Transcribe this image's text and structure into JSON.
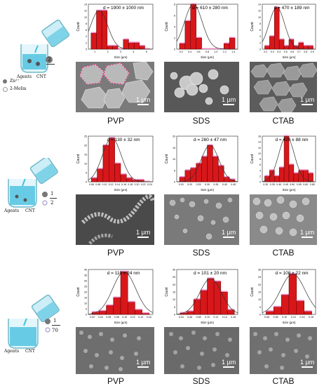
{
  "samples": [
    "PVP",
    "SDS",
    "CTAB"
  ],
  "scale_bar": "1 µm",
  "axis": {
    "y": "Count",
    "x": "Size (µm)"
  },
  "schematics": [
    {
      "labels": [
        "2",
        "Agents",
        "CNT",
        "Zn²⁺",
        "2-MeIm"
      ],
      "ratio_top": "",
      "ratio_bottom": "2"
    },
    {
      "labels": [
        "Agents",
        "CNT"
      ],
      "ratio_top": "1",
      "ratio_bottom": "2"
    },
    {
      "labels": [
        "Agents",
        "CNT"
      ],
      "ratio_top": "1",
      "ratio_bottom": "70"
    }
  ],
  "panels": [
    {
      "sample": "PVP",
      "title": "d = 1900 ± 1000 nm",
      "xticks": [
        "1",
        "2",
        "3",
        "4",
        "5"
      ],
      "yticks": [
        "0",
        "2",
        "4",
        "6",
        "8",
        "10",
        "12",
        "14"
      ],
      "values": [
        5,
        12,
        12,
        1,
        1,
        0,
        3,
        2,
        2,
        1,
        0
      ]
    },
    {
      "sample": "SDS",
      "title": "d = 610 ± 280 nm",
      "xticks": [
        "0.2",
        "0.4",
        "0.6",
        "0.8",
        "1.0",
        "1.2",
        "1.4"
      ],
      "yticks": [
        "0",
        "2",
        "4",
        "6",
        "8"
      ],
      "values": [
        1,
        5,
        8,
        2,
        0,
        0,
        0,
        0,
        1,
        2
      ]
    },
    {
      "sample": "CTAB",
      "title": "d = 470 ± 189 nm",
      "xticks": [
        "0.2",
        "0.3",
        "0.4",
        "0.5",
        "0.6",
        "0.7",
        "0.8",
        "0.9"
      ],
      "yticks": [
        "0",
        "2",
        "4",
        "6",
        "8",
        "10",
        "12",
        "14"
      ],
      "values": [
        1,
        4,
        13,
        3,
        1,
        3,
        1,
        2,
        1,
        1
      ]
    },
    {
      "sample": "PVP",
      "title": "d = 130 ± 32 nm",
      "xticks": [
        "0.06",
        "0.08",
        "0.10",
        "0.12",
        "0.14",
        "0.16",
        "0.18",
        "0.20",
        "0.22",
        "0.24"
      ],
      "yticks": [
        "0",
        "5",
        "10",
        "15",
        "20",
        "25"
      ],
      "values": [
        2,
        7,
        20,
        24,
        10,
        4,
        2,
        1,
        1,
        0
      ]
    },
    {
      "sample": "SDS",
      "title": "d = 260 ± 47 nm",
      "xticks": [
        "0.15",
        "0.20",
        "0.25",
        "0.30",
        "0.35",
        "0.40",
        "0.45"
      ],
      "yticks": [
        "0",
        "5",
        "10",
        "15",
        "20"
      ],
      "values": [
        2,
        5,
        6,
        8,
        11,
        16,
        11,
        7,
        2,
        1
      ]
    },
    {
      "sample": "CTAB",
      "title": "d = 420 ± 88 nm",
      "xticks": [
        "0.30",
        "0.35",
        "0.40",
        "0.45",
        "0.50",
        "0.55",
        "0.60",
        "0.65"
      ],
      "yticks": [
        "0",
        "2",
        "4",
        "6",
        "8",
        "10",
        "12",
        "14",
        "16"
      ],
      "values": [
        2,
        4,
        2,
        5,
        16,
        6,
        3,
        4,
        4,
        3
      ]
    },
    {
      "sample": "PVP",
      "title": "d = 110 ± 24 nm",
      "xticks": [
        "0.02",
        "0.04",
        "0.06",
        "0.08",
        "0.10",
        "0.12",
        "0.14",
        "0.16"
      ],
      "yticks": [
        "0",
        "5",
        "10",
        "15",
        "20",
        "25",
        "30",
        "35",
        "40"
      ],
      "values": [
        2,
        3,
        8,
        15,
        38,
        11,
        4,
        1
      ]
    },
    {
      "sample": "SDS",
      "title": "d = 101 ± 20 nm",
      "xticks": [
        "0.04",
        "0.06",
        "0.08",
        "0.10",
        "0.12",
        "0.14",
        "0.16"
      ],
      "yticks": [
        "0",
        "5",
        "10",
        "15",
        "20",
        "25",
        "30"
      ],
      "values": [
        1,
        2,
        10,
        16,
        24,
        22,
        15,
        3
      ]
    },
    {
      "sample": "CTAB",
      "title": "d = 108 ± 22 nm",
      "xticks": [
        "0.06",
        "0.08",
        "0.10",
        "0.12",
        "0.14",
        "0.16"
      ],
      "yticks": [
        "0",
        "5",
        "10",
        "15",
        "20",
        "25",
        "30"
      ],
      "values": [
        2,
        5,
        13,
        27,
        9,
        2
      ]
    }
  ]
}
